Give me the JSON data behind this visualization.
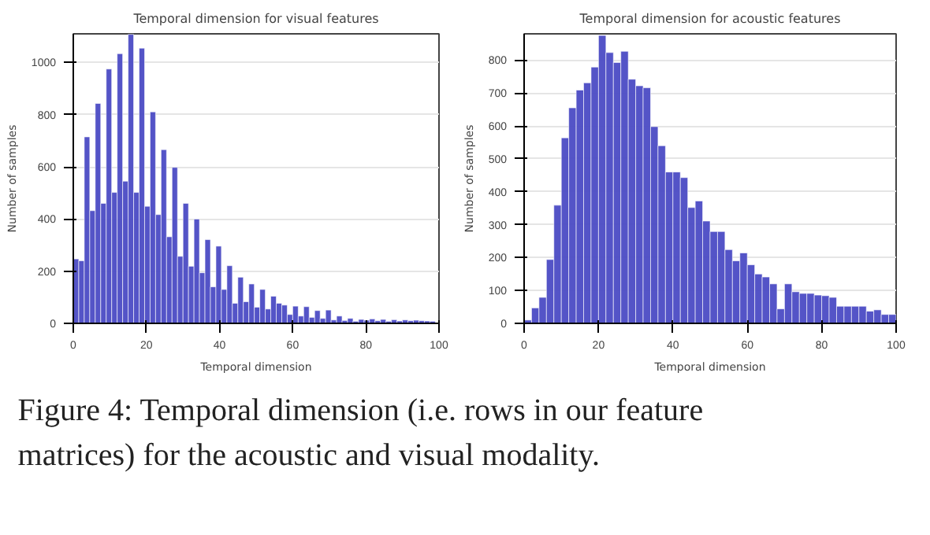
{
  "chart_data": [
    {
      "type": "histogram",
      "title": "Temporal dimension for visual features",
      "xlabel": "Temporal dimension",
      "ylabel": "Number of samples",
      "color": "#4b4bc4",
      "grid": "y",
      "bins": [
        0,
        1.5,
        3,
        4.5,
        6,
        7.5,
        9,
        10.5,
        12,
        13.5,
        15,
        16.5,
        18,
        19.5,
        21,
        22.5,
        24,
        25.5,
        27,
        28.5,
        30,
        31.5,
        33,
        34.5,
        36,
        37.5,
        39,
        40.5,
        42,
        43.5,
        45,
        46.5,
        48,
        49.5,
        51,
        52.5,
        54,
        55.5,
        57,
        58.5,
        60,
        61.5,
        63,
        64.5,
        66,
        67.5,
        69,
        70.5,
        72,
        73.5,
        75,
        76.5,
        78,
        79.5,
        81,
        82.5,
        84,
        85.5,
        87,
        88.5,
        90,
        91.5,
        93,
        94.5,
        96,
        97.5,
        99
      ],
      "values": [
        247,
        240,
        715,
        432,
        843,
        460,
        975,
        502,
        1034,
        545,
        1108,
        502,
        1055,
        449,
        811,
        417,
        666,
        332,
        598,
        257,
        460,
        219,
        400,
        194,
        321,
        140,
        296,
        130,
        221,
        77,
        177,
        83,
        151,
        62,
        130,
        55,
        104,
        77,
        70,
        34,
        66,
        28,
        64,
        23,
        49,
        19,
        51,
        13,
        28,
        11,
        19,
        8,
        15,
        12,
        17,
        10,
        15,
        8,
        14,
        9,
        13,
        10,
        12,
        10,
        9,
        8
      ],
      "xlim": [
        0,
        100
      ],
      "xticks": [
        0,
        20,
        40,
        60,
        80,
        100
      ],
      "ylim": [
        0,
        1110
      ],
      "yticks": [
        0,
        200,
        400,
        600,
        800,
        1000
      ]
    },
    {
      "type": "histogram",
      "title": "Temporal dimension for acoustic features",
      "xlabel": "Temporal dimension",
      "ylabel": "Number of samples",
      "color": "#4b4bc4",
      "grid": "y",
      "bins": [
        0,
        2,
        4,
        6,
        8,
        10,
        12,
        14,
        16,
        18,
        20,
        22,
        24,
        26,
        28,
        30,
        32,
        34,
        36,
        38,
        40,
        42,
        44,
        46,
        48,
        50,
        52,
        54,
        56,
        58,
        60,
        62,
        64,
        66,
        68,
        70,
        72,
        74,
        76,
        78,
        80,
        82,
        84,
        86,
        88,
        90,
        92,
        94,
        96,
        98,
        100
      ],
      "values": [
        10,
        47,
        79,
        194,
        359,
        564,
        655,
        709,
        731,
        779,
        875,
        823,
        793,
        827,
        742,
        722,
        716,
        598,
        540,
        460,
        460,
        443,
        352,
        372,
        311,
        279,
        279,
        224,
        190,
        214,
        178,
        150,
        141,
        120,
        44,
        120,
        96,
        91,
        91,
        86,
        84,
        79,
        52,
        52,
        52,
        52,
        37,
        41,
        27,
        27
      ],
      "xlim": [
        0,
        100
      ],
      "xticks": [
        0,
        20,
        40,
        60,
        80,
        100
      ],
      "ylim": [
        0,
        880
      ],
      "yticks": [
        0,
        100,
        200,
        300,
        400,
        500,
        600,
        700,
        800
      ]
    },
    {
      "type": "other",
      "annotations": [
        "Figure 4: Temporal dimension (i.e. rows in our feature matrices) for the acoustic and visual modality."
      ]
    }
  ]
}
